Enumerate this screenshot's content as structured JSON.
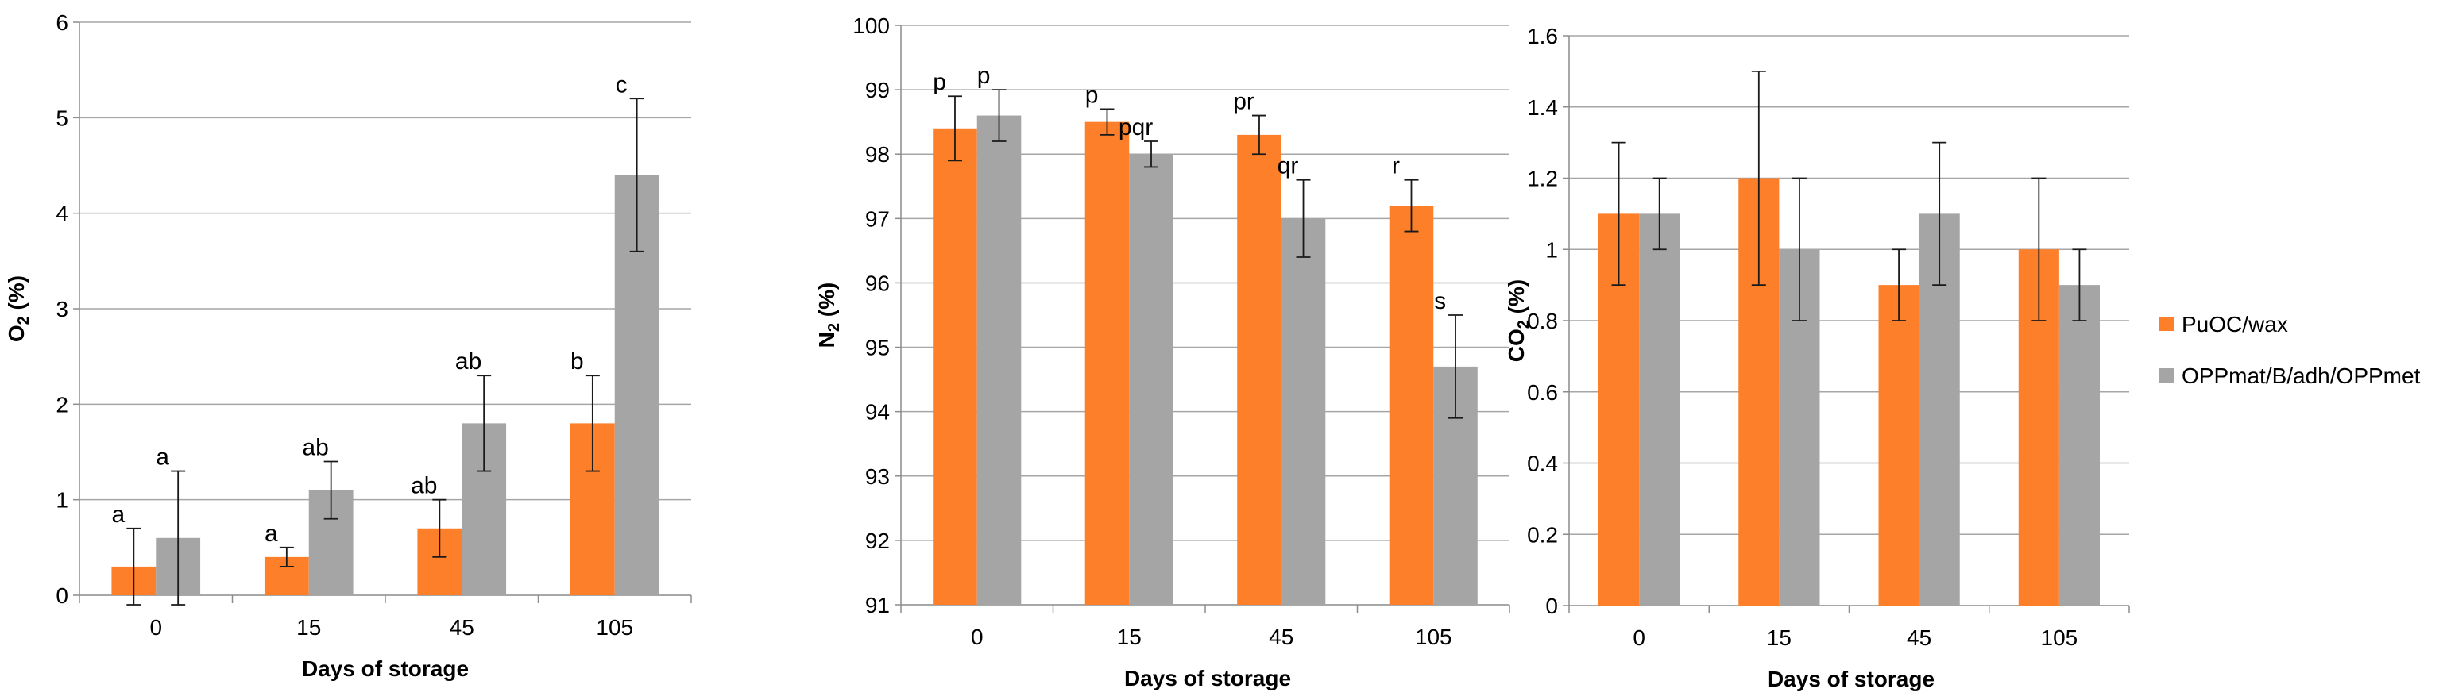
{
  "colors": {
    "orange": "#fe7f29",
    "gray": "#a5a5a5",
    "grid": "#a6a6a6",
    "axis": "#8c8c8c",
    "error": "#1a1a1a"
  },
  "legend": [
    {
      "name": "PuOC/wax",
      "color": "#fe7f29"
    },
    {
      "name": "OPPmat/B/adh/OPPmet",
      "color": "#a5a5a5"
    }
  ],
  "chart_data": [
    {
      "type": "bar",
      "ylabel_main": "O",
      "ylabel_sub": "2",
      "ylabel_rest": " (%)",
      "xlabel": "Days of storage",
      "categories": [
        "0",
        "15",
        "45",
        "105"
      ],
      "ylim": [
        0,
        6
      ],
      "yticks": [
        "0",
        "1",
        "2",
        "3",
        "4",
        "5",
        "6"
      ],
      "grid": true,
      "series": [
        {
          "name": "PuOC/wax",
          "values": [
            0.3,
            0.4,
            0.7,
            1.8
          ],
          "errors": [
            0.4,
            0.1,
            0.3,
            0.5
          ],
          "labels": [
            "a",
            "a",
            "ab",
            "b"
          ]
        },
        {
          "name": "OPPmat/B/adh/OPPmet",
          "values": [
            0.6,
            1.1,
            1.8,
            4.4
          ],
          "errors": [
            0.7,
            0.3,
            0.5,
            0.8
          ],
          "labels": [
            "a",
            "ab",
            "ab",
            "c"
          ]
        }
      ]
    },
    {
      "type": "bar",
      "ylabel_main": "N",
      "ylabel_sub": "2",
      "ylabel_rest": " (%)",
      "xlabel": "Days of storage",
      "categories": [
        "0",
        "15",
        "45",
        "105"
      ],
      "ylim": [
        91,
        100
      ],
      "yticks": [
        "91",
        "92",
        "93",
        "94",
        "95",
        "96",
        "97",
        "98",
        "99",
        "100"
      ],
      "grid": true,
      "series": [
        {
          "name": "PuOC/wax",
          "values": [
            98.4,
            98.5,
            98.3,
            97.2
          ],
          "errors": [
            0.5,
            0.2,
            0.3,
            0.4
          ],
          "labels": [
            "p",
            "p",
            "pr",
            "r"
          ]
        },
        {
          "name": "OPPmat/B/adh/OPPmet",
          "values": [
            98.6,
            98.0,
            97.0,
            94.7
          ],
          "errors": [
            0.4,
            0.2,
            0.6,
            0.8
          ],
          "labels": [
            "p",
            "pqr",
            "qr",
            "s"
          ]
        }
      ]
    },
    {
      "type": "bar",
      "ylabel_main": "CO",
      "ylabel_sub": "2",
      "ylabel_rest": " (%)",
      "xlabel": "Days of storage",
      "categories": [
        "0",
        "15",
        "45",
        "105"
      ],
      "ylim": [
        0,
        1.6
      ],
      "yticks": [
        "0",
        "0.2",
        "0.4",
        "0.6",
        "0.8",
        "1",
        "1.2",
        "1.4",
        "1.6"
      ],
      "grid": true,
      "series": [
        {
          "name": "PuOC/wax",
          "values": [
            1.1,
            1.2,
            0.9,
            1.0
          ],
          "errors": [
            0.2,
            0.3,
            0.1,
            0.2
          ],
          "labels": [
            "",
            "",
            "",
            ""
          ]
        },
        {
          "name": "OPPmat/B/adh/OPPmet",
          "values": [
            1.1,
            1.0,
            1.1,
            0.9
          ],
          "errors": [
            0.1,
            0.2,
            0.2,
            0.1
          ],
          "labels": [
            "",
            "",
            "",
            ""
          ]
        }
      ]
    }
  ]
}
